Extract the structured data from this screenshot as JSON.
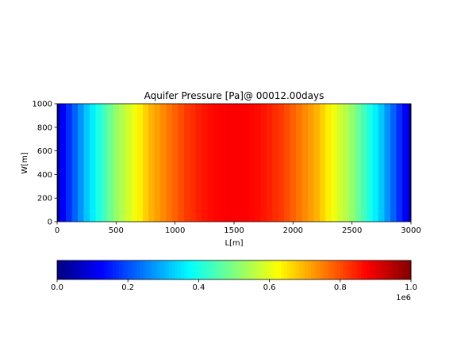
{
  "chart_data": {
    "type": "heatmap",
    "title": "Aquifer Pressure [Pa]@ 00012.00days",
    "xlabel": "L[m]",
    "ylabel": "W[m]",
    "xlim": [
      0,
      3000
    ],
    "ylim": [
      0,
      1000
    ],
    "xticks": [
      0,
      500,
      1000,
      1500,
      2000,
      2500,
      3000
    ],
    "xtick_labels": [
      "0",
      "500",
      "1000",
      "1500",
      "2000",
      "2500",
      "3000"
    ],
    "yticks": [
      0,
      200,
      400,
      600,
      800,
      1000
    ],
    "ytick_labels": [
      "0",
      "200",
      "400",
      "600",
      "800",
      "1000"
    ],
    "colormap": "jet",
    "grid": false,
    "field_description": "pressure varies only along L; constant along W",
    "profile": {
      "L": [
        0,
        50,
        100,
        150,
        200,
        250,
        300,
        350,
        400,
        450,
        500,
        550,
        600,
        650,
        700,
        750,
        800,
        850,
        900,
        950,
        1000,
        1050,
        1100,
        1150,
        1200,
        1250,
        1300,
        1350,
        1400,
        1450,
        1500,
        1550,
        1600,
        1650,
        1700,
        1750,
        1800,
        1850,
        1900,
        1950,
        2000,
        2050,
        2100,
        2150,
        2200,
        2250,
        2300,
        2350,
        2400,
        2450,
        2500,
        2550,
        2600,
        2650,
        2700,
        2750,
        2800,
        2850,
        2900,
        2950,
        3000
      ],
      "pressure": [
        0.02,
        0.12,
        0.17,
        0.22,
        0.27,
        0.32,
        0.36,
        0.4,
        0.44,
        0.48,
        0.52,
        0.55,
        0.58,
        0.61,
        0.64,
        0.67,
        0.7,
        0.72,
        0.74,
        0.76,
        0.78,
        0.8,
        0.82,
        0.83,
        0.845,
        0.855,
        0.865,
        0.87,
        0.875,
        0.878,
        0.88,
        0.878,
        0.875,
        0.87,
        0.865,
        0.855,
        0.845,
        0.83,
        0.82,
        0.8,
        0.78,
        0.76,
        0.74,
        0.72,
        0.7,
        0.67,
        0.64,
        0.61,
        0.58,
        0.55,
        0.52,
        0.48,
        0.44,
        0.4,
        0.36,
        0.32,
        0.27,
        0.22,
        0.17,
        0.12,
        0.02
      ]
    },
    "colorbar": {
      "orientation": "horizontal",
      "range": [
        0,
        1
      ],
      "ticks": [
        0.0,
        0.2,
        0.4,
        0.6,
        0.8,
        1.0
      ],
      "tick_labels": [
        "0.0",
        "0.2",
        "0.4",
        "0.6",
        "0.8",
        "1.0"
      ],
      "offset_text": "1e6"
    }
  }
}
